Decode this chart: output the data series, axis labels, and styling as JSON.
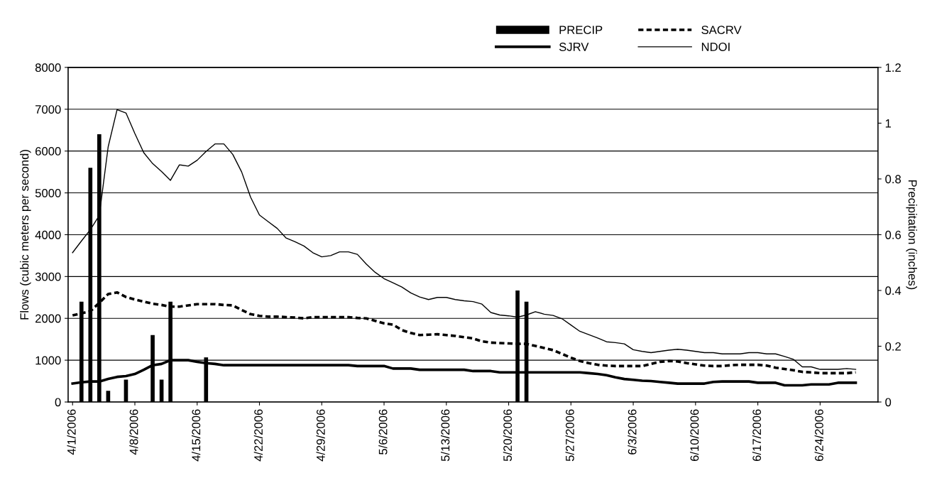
{
  "chart_data": {
    "type": "line",
    "ylabel": "Flows (cubic meters per second)",
    "y2label": "Precipitation (inches)",
    "x": [
      "2006-04-01",
      "2006-04-02",
      "2006-04-03",
      "2006-04-04",
      "2006-04-05",
      "2006-04-06",
      "2006-04-07",
      "2006-04-08",
      "2006-04-09",
      "2006-04-10",
      "2006-04-11",
      "2006-04-12",
      "2006-04-13",
      "2006-04-14",
      "2006-04-15",
      "2006-04-16",
      "2006-04-17",
      "2006-04-18",
      "2006-04-19",
      "2006-04-20",
      "2006-04-21",
      "2006-04-22",
      "2006-04-23",
      "2006-04-24",
      "2006-04-25",
      "2006-04-26",
      "2006-04-27",
      "2006-04-28",
      "2006-04-29",
      "2006-04-30",
      "2006-05-01",
      "2006-05-02",
      "2006-05-03",
      "2006-05-04",
      "2006-05-05",
      "2006-05-06",
      "2006-05-07",
      "2006-05-08",
      "2006-05-09",
      "2006-05-10",
      "2006-05-11",
      "2006-05-12",
      "2006-05-13",
      "2006-05-14",
      "2006-05-15",
      "2006-05-16",
      "2006-05-17",
      "2006-05-18",
      "2006-05-19",
      "2006-05-20",
      "2006-05-21",
      "2006-05-22",
      "2006-05-23",
      "2006-05-24",
      "2006-05-25",
      "2006-05-26",
      "2006-05-27",
      "2006-05-28",
      "2006-05-29",
      "2006-05-30",
      "2006-05-31",
      "2006-06-01",
      "2006-06-02",
      "2006-06-03",
      "2006-06-04",
      "2006-06-05",
      "2006-06-06",
      "2006-06-07",
      "2006-06-08",
      "2006-06-09",
      "2006-06-10",
      "2006-06-11",
      "2006-06-12",
      "2006-06-13",
      "2006-06-14",
      "2006-06-15",
      "2006-06-16",
      "2006-06-17",
      "2006-06-18",
      "2006-06-19",
      "2006-06-20",
      "2006-06-21",
      "2006-06-22",
      "2006-06-23",
      "2006-06-24",
      "2006-06-25",
      "2006-06-26",
      "2006-06-27",
      "2006-06-28"
    ],
    "xlim": [
      "2006-03-31T12:00",
      "2006-06-30T12:00"
    ],
    "xticks": [
      {
        "value": "2006-04-01",
        "label": "4/1/2006"
      },
      {
        "value": "2006-04-08",
        "label": "4/8/2006"
      },
      {
        "value": "2006-04-15",
        "label": "4/15/2006"
      },
      {
        "value": "2006-04-22",
        "label": "4/22/2006"
      },
      {
        "value": "2006-04-29",
        "label": "4/29/2006"
      },
      {
        "value": "2006-05-06",
        "label": "5/6/2006"
      },
      {
        "value": "2006-05-13",
        "label": "5/13/2006"
      },
      {
        "value": "2006-05-20",
        "label": "5/20/2006"
      },
      {
        "value": "2006-05-27",
        "label": "5/27/2006"
      },
      {
        "value": "2006-06-03",
        "label": "6/3/2006"
      },
      {
        "value": "2006-06-10",
        "label": "6/10/2006"
      },
      {
        "value": "2006-06-17",
        "label": "6/17/2006"
      },
      {
        "value": "2006-06-24",
        "label": "6/24/2006"
      }
    ],
    "ylim": [
      0,
      8000
    ],
    "yticks": [
      0,
      1000,
      2000,
      3000,
      4000,
      5000,
      6000,
      7000,
      8000
    ],
    "y2lim": [
      0,
      1.2
    ],
    "y2ticks": [
      0,
      0.2,
      0.4,
      0.6,
      0.8,
      1,
      1.2
    ],
    "grid": "y",
    "legend": "top",
    "series": [
      {
        "name": "PRECIP",
        "type": "bar",
        "axis": "y2",
        "color": "#000000",
        "x": [
          "2006-04-02",
          "2006-04-03",
          "2006-04-04",
          "2006-04-05",
          "2006-04-07",
          "2006-04-10",
          "2006-04-11",
          "2006-04-12",
          "2006-04-16",
          "2006-05-21",
          "2006-05-22"
        ],
        "values": [
          0.36,
          0.84,
          0.96,
          0.04,
          0.08,
          0.24,
          0.08,
          0.36,
          0.16,
          0.4,
          0.36
        ]
      },
      {
        "name": "SACRV",
        "line_style": "dashed",
        "color": "#000000",
        "values": [
          2070,
          2120,
          2170,
          2370,
          2580,
          2620,
          2510,
          2450,
          2400,
          2350,
          2320,
          2280,
          2280,
          2310,
          2340,
          2340,
          2340,
          2320,
          2310,
          2200,
          2100,
          2060,
          2040,
          2040,
          2030,
          2020,
          2000,
          2030,
          2030,
          2030,
          2030,
          2030,
          2010,
          2000,
          1940,
          1880,
          1850,
          1720,
          1650,
          1600,
          1610,
          1620,
          1600,
          1580,
          1550,
          1520,
          1450,
          1420,
          1410,
          1400,
          1390,
          1390,
          1340,
          1290,
          1240,
          1150,
          1060,
          980,
          930,
          890,
          870,
          860,
          860,
          860,
          860,
          910,
          960,
          980,
          970,
          930,
          900,
          870,
          860,
          860,
          880,
          890,
          890,
          890,
          870,
          820,
          790,
          760,
          720,
          710,
          690,
          690,
          690,
          690,
          710
        ]
      },
      {
        "name": "SJRV",
        "line_style": "solid",
        "color": "#000000",
        "values": [
          440,
          470,
          490,
          490,
          550,
          600,
          620,
          670,
          770,
          880,
          910,
          1000,
          1000,
          1000,
          960,
          930,
          910,
          880,
          880,
          880,
          880,
          880,
          880,
          880,
          880,
          880,
          880,
          880,
          880,
          880,
          880,
          880,
          860,
          860,
          860,
          860,
          800,
          800,
          800,
          770,
          770,
          770,
          770,
          770,
          770,
          740,
          740,
          740,
          710,
          710,
          710,
          710,
          710,
          710,
          710,
          710,
          710,
          710,
          690,
          670,
          640,
          590,
          550,
          530,
          510,
          500,
          480,
          460,
          440,
          440,
          440,
          440,
          480,
          490,
          490,
          490,
          490,
          460,
          460,
          460,
          400,
          400,
          400,
          420,
          420,
          420,
          460,
          460,
          460
        ]
      },
      {
        "name": "NDOI",
        "line_style": "solid",
        "color": "#000000",
        "values": [
          3570,
          3850,
          4120,
          4460,
          6100,
          6990,
          6910,
          6420,
          5960,
          5700,
          5510,
          5300,
          5670,
          5640,
          5780,
          5990,
          6170,
          6170,
          5920,
          5500,
          4900,
          4470,
          4310,
          4150,
          3920,
          3830,
          3730,
          3570,
          3470,
          3500,
          3590,
          3590,
          3530,
          3300,
          3100,
          2950,
          2850,
          2750,
          2610,
          2510,
          2450,
          2500,
          2500,
          2450,
          2420,
          2400,
          2340,
          2140,
          2080,
          2060,
          2030,
          2080,
          2160,
          2100,
          2070,
          1990,
          1840,
          1690,
          1610,
          1530,
          1440,
          1420,
          1390,
          1250,
          1210,
          1180,
          1210,
          1240,
          1260,
          1240,
          1210,
          1180,
          1180,
          1150,
          1150,
          1150,
          1180,
          1180,
          1150,
          1150,
          1090,
          1020,
          840,
          840,
          780,
          780,
          780,
          800,
          780
        ]
      }
    ]
  }
}
